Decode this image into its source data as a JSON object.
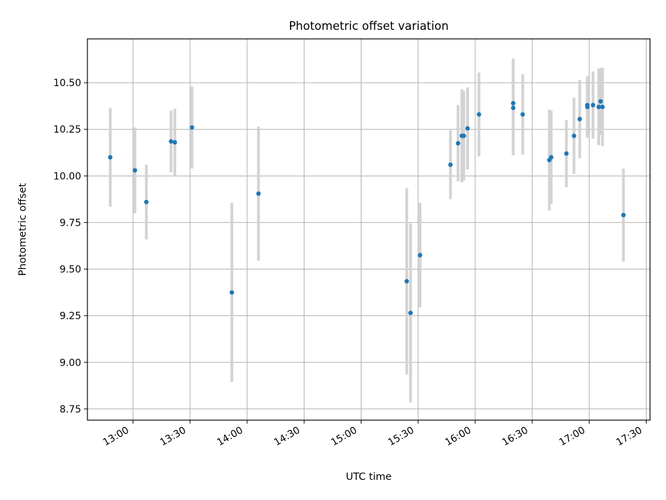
{
  "chart_data": {
    "type": "scatter",
    "title": "Photometric offset variation",
    "xlabel": "UTC time",
    "ylabel": "Photometric offset",
    "x_tick_labels": [
      "13:00",
      "13:30",
      "14:00",
      "14:30",
      "15:00",
      "15:30",
      "16:00",
      "16:30",
      "17:00",
      "17:30"
    ],
    "y_tick_labels": [
      "8.75",
      "9.00",
      "9.25",
      "9.50",
      "9.75",
      "10.00",
      "10.25",
      "10.50"
    ],
    "y_ticks": [
      8.75,
      9.0,
      9.25,
      9.5,
      9.75,
      10.0,
      10.25,
      10.5
    ],
    "ylim": [
      8.69,
      10.735
    ],
    "xlim": [
      "12:36",
      "17:32"
    ],
    "grid": true,
    "colors": {
      "point": "#1f77b4",
      "errorbar": "#d3d3d3",
      "grid": "#b0b0b0"
    },
    "points": [
      {
        "t": "12:48",
        "y": 10.1,
        "err": 0.265
      },
      {
        "t": "13:01",
        "y": 10.03,
        "err": 0.23
      },
      {
        "t": "13:07",
        "y": 9.86,
        "err": 0.2
      },
      {
        "t": "13:20",
        "y": 10.185,
        "err": 0.165
      },
      {
        "t": "13:22",
        "y": 10.18,
        "err": 0.18
      },
      {
        "t": "13:31",
        "y": 10.26,
        "err": 0.22
      },
      {
        "t": "13:52",
        "y": 9.375,
        "err": 0.48
      },
      {
        "t": "14:06",
        "y": 9.905,
        "err": 0.36
      },
      {
        "t": "15:24",
        "y": 9.435,
        "err": 0.5
      },
      {
        "t": "15:26",
        "y": 9.265,
        "err": 0.48
      },
      {
        "t": "15:31",
        "y": 9.575,
        "err": 0.28
      },
      {
        "t": "15:47",
        "y": 10.06,
        "err": 0.185
      },
      {
        "t": "15:51",
        "y": 10.175,
        "err": 0.205
      },
      {
        "t": "15:53",
        "y": 10.215,
        "err": 0.25
      },
      {
        "t": "15:54",
        "y": 10.215,
        "err": 0.24
      },
      {
        "t": "15:56",
        "y": 10.255,
        "err": 0.22
      },
      {
        "t": "16:02",
        "y": 10.33,
        "err": 0.225
      },
      {
        "t": "16:20",
        "y": 10.39,
        "err": 0.24
      },
      {
        "t": "16:20",
        "y": 10.365,
        "err": 0.255
      },
      {
        "t": "16:25",
        "y": 10.33,
        "err": 0.215
      },
      {
        "t": "16:39",
        "y": 10.085,
        "err": 0.27
      },
      {
        "t": "16:40",
        "y": 10.1,
        "err": 0.25
      },
      {
        "t": "16:48",
        "y": 10.12,
        "err": 0.18
      },
      {
        "t": "16:52",
        "y": 10.215,
        "err": 0.205
      },
      {
        "t": "16:55",
        "y": 10.305,
        "err": 0.21
      },
      {
        "t": "16:59",
        "y": 10.37,
        "err": 0.165
      },
      {
        "t": "16:59",
        "y": 10.38,
        "err": 0.155
      },
      {
        "t": "17:02",
        "y": 10.38,
        "err": 0.18
      },
      {
        "t": "17:05",
        "y": 10.37,
        "err": 0.205
      },
      {
        "t": "17:06",
        "y": 10.4,
        "err": 0.18
      },
      {
        "t": "17:07",
        "y": 10.37,
        "err": 0.21
      },
      {
        "t": "17:18",
        "y": 9.79,
        "err": 0.25
      }
    ]
  }
}
